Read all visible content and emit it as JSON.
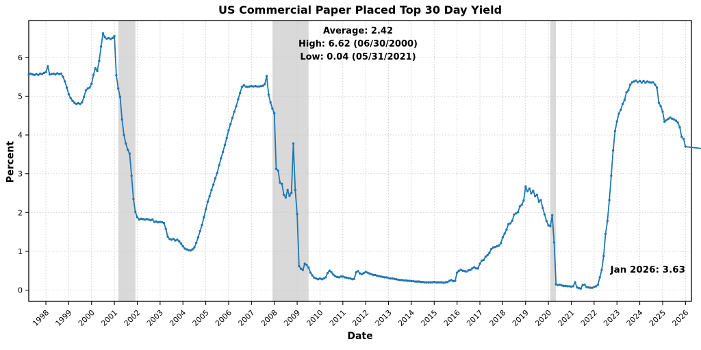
{
  "chart_data": {
    "type": "line",
    "title": "US Commercial Paper Placed Top 30 Day Yield",
    "xlabel": "Date",
    "ylabel": "Percent",
    "line_color": "#1f77b4",
    "band_color": "#d9d9d9",
    "grid_color": "#c9c9c9",
    "grid": true,
    "legend_position": "none",
    "x_ticks": [
      1998,
      1999,
      2000,
      2001,
      2002,
      2003,
      2004,
      2005,
      2006,
      2007,
      2008,
      2009,
      2010,
      2011,
      2012,
      2013,
      2014,
      2015,
      2016,
      2017,
      2018,
      2019,
      2020,
      2021,
      2022,
      2023,
      2024,
      2025,
      2026
    ],
    "y_ticks": [
      0,
      1,
      2,
      3,
      4,
      5,
      6
    ],
    "xlim": [
      1997.25,
      2026.26
    ],
    "ylim": [
      -0.29,
      6.95
    ],
    "recession_bands": [
      {
        "start": 2001.17,
        "end": 2001.92
      },
      {
        "start": 2007.92,
        "end": 2009.5
      },
      {
        "start": 2020.08,
        "end": 2020.33
      }
    ],
    "annotations": {
      "stats": [
        "Average: 2.42",
        "High: 6.62 (06/30/2000)",
        "Low: 0.04 (05/31/2021)"
      ],
      "last_label": "Jan 2026: 3.63"
    },
    "series": [
      {
        "name": "US Commercial Paper Placed Top 30 Day Yield",
        "frequency": "monthly",
        "monthly": {
          "1997": [
            5.55,
            5.58,
            5.56,
            5.55,
            5.57,
            5.55,
            5.58,
            5.57,
            5.6,
            5.62
          ],
          "1998": [
            5.77,
            5.56,
            5.57,
            5.58,
            5.56,
            5.59,
            5.57,
            5.58,
            5.5,
            5.38,
            5.22,
            5.05
          ],
          "1999": [
            4.95,
            4.88,
            4.83,
            4.8,
            4.82,
            4.8,
            4.84,
            4.98,
            5.15,
            5.2,
            5.22,
            5.32
          ],
          "2000": [
            5.55,
            5.72,
            5.65,
            5.91,
            6.28,
            6.62,
            6.52,
            6.48,
            6.5,
            6.47,
            6.5,
            6.55
          ],
          "2001": [
            5.54,
            5.2,
            4.98,
            4.4,
            4.0,
            3.78,
            3.62,
            3.52,
            2.95,
            2.35,
            2.02,
            1.88
          ],
          "2002": [
            1.82,
            1.84,
            1.83,
            1.82,
            1.83,
            1.82,
            1.8,
            1.82,
            1.76,
            1.77,
            1.75,
            1.76
          ],
          "2003": [
            1.75,
            1.73,
            1.58,
            1.38,
            1.32,
            1.3,
            1.32,
            1.28,
            1.3,
            1.26,
            1.2,
            1.13
          ],
          "2004": [
            1.07,
            1.05,
            1.03,
            1.02,
            1.05,
            1.1,
            1.22,
            1.36,
            1.52,
            1.68,
            1.88,
            2.08
          ],
          "2005": [
            2.28,
            2.42,
            2.58,
            2.72,
            2.88,
            3.02,
            3.22,
            3.4,
            3.56,
            3.74,
            3.92,
            4.12
          ],
          "2006": [
            4.28,
            4.44,
            4.6,
            4.74,
            4.92,
            5.08,
            5.24,
            5.28,
            5.25,
            5.24,
            5.25,
            5.26
          ],
          "2007": [
            5.25,
            5.26,
            5.25,
            5.25,
            5.26,
            5.27,
            5.31,
            5.52,
            5.04,
            4.84,
            4.68,
            4.56
          ],
          "2008": [
            3.13,
            3.08,
            2.77,
            2.74,
            2.46,
            2.39,
            2.58,
            2.43,
            2.51,
            3.78,
            2.58,
            1.96
          ],
          "2009": [
            0.62,
            0.55,
            0.52,
            0.68,
            0.65,
            0.58,
            0.45,
            0.38,
            0.32,
            0.3,
            0.28,
            0.3
          ],
          "2010": [
            0.28,
            0.3,
            0.33,
            0.44,
            0.5,
            0.46,
            0.4,
            0.36,
            0.34,
            0.33,
            0.35,
            0.35
          ],
          "2011": [
            0.33,
            0.32,
            0.31,
            0.3,
            0.28,
            0.29,
            0.46,
            0.49,
            0.43,
            0.41,
            0.44,
            0.47
          ],
          "2012": [
            0.45,
            0.43,
            0.41,
            0.39,
            0.39,
            0.37,
            0.36,
            0.35,
            0.34,
            0.33,
            0.33,
            0.31
          ],
          "2013": [
            0.3,
            0.3,
            0.29,
            0.28,
            0.27,
            0.26,
            0.26,
            0.25,
            0.25,
            0.24,
            0.24,
            0.23
          ],
          "2014": [
            0.23,
            0.22,
            0.22,
            0.22,
            0.21,
            0.21,
            0.2,
            0.2,
            0.2,
            0.2,
            0.2,
            0.21
          ],
          "2015": [
            0.2,
            0.2,
            0.2,
            0.2,
            0.19,
            0.2,
            0.21,
            0.24,
            0.26,
            0.23,
            0.24,
            0.45
          ],
          "2016": [
            0.5,
            0.52,
            0.5,
            0.49,
            0.48,
            0.51,
            0.52,
            0.56,
            0.59,
            0.56,
            0.56,
            0.68
          ],
          "2017": [
            0.76,
            0.78,
            0.86,
            0.9,
            0.96,
            1.06,
            1.1,
            1.11,
            1.13,
            1.15,
            1.21,
            1.36
          ],
          "2018": [
            1.46,
            1.56,
            1.7,
            1.72,
            1.79,
            1.95,
            1.98,
            2.01,
            2.16,
            2.2,
            2.31,
            2.67
          ],
          "2019": [
            2.55,
            2.62,
            2.5,
            2.56,
            2.42,
            2.46,
            2.28,
            2.32,
            2.12,
            1.95,
            1.78,
            1.67
          ],
          "2020": [
            1.65,
            1.93,
            1.23,
            0.15,
            0.13,
            0.14,
            0.12,
            0.11,
            0.11,
            0.1,
            0.1,
            0.09
          ],
          "2021": [
            0.1,
            0.2,
            0.07,
            0.05,
            0.04,
            0.13,
            0.14,
            0.08,
            0.07,
            0.06,
            0.06,
            0.08
          ],
          "2022": [
            0.1,
            0.14,
            0.33,
            0.52,
            0.88,
            1.45,
            1.78,
            2.32,
            2.95,
            3.6,
            4.1,
            4.35
          ],
          "2023": [
            4.55,
            4.65,
            4.8,
            4.9,
            5.1,
            5.15,
            5.3,
            5.36,
            5.38,
            5.4,
            5.36,
            5.39
          ],
          "2024": [
            5.35,
            5.39,
            5.35,
            5.38,
            5.36,
            5.35,
            5.36,
            5.3,
            5.22,
            4.83,
            4.74,
            4.6
          ],
          "2025": [
            4.34,
            4.38,
            4.42,
            4.45,
            4.42,
            4.4,
            4.37,
            4.32,
            4.2,
            3.95,
            3.9,
            3.7
          ],
          "2026": [
            3.63
          ]
        }
      }
    ]
  }
}
